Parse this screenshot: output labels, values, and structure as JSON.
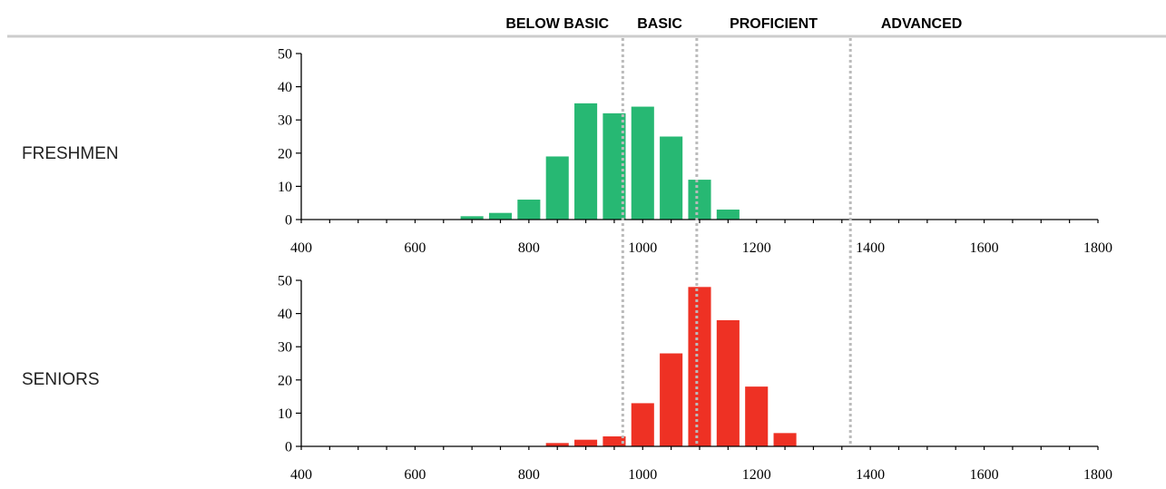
{
  "bands": [
    "BELOW BASIC",
    "BASIC",
    "PROFICIENT",
    "ADVANCED"
  ],
  "band_colors": {
    "header_line": "#cccccc",
    "cutoff_line": "#bbbbbb"
  },
  "chart_data": [
    {
      "type": "bar",
      "row_label": "FRESHMEN",
      "color": "#27b873",
      "x": [
        700,
        750,
        800,
        850,
        900,
        950,
        1000,
        1050,
        1100,
        1150
      ],
      "values": [
        1,
        2,
        6,
        19,
        35,
        32,
        34,
        25,
        12,
        3
      ],
      "xlim": [
        400,
        1800
      ],
      "ylim": [
        0,
        50
      ],
      "xticks": [
        400,
        600,
        800,
        1000,
        1200,
        1400,
        1600,
        1800
      ],
      "yticks": [
        0,
        10,
        20,
        30,
        40,
        50
      ],
      "cutoffs": [
        965,
        1095,
        1365
      ]
    },
    {
      "type": "bar",
      "row_label": "SENIORS",
      "color": "#ee3124",
      "x": [
        850,
        900,
        950,
        1000,
        1050,
        1100,
        1150,
        1200,
        1250
      ],
      "values": [
        1,
        2,
        3,
        13,
        28,
        48,
        38,
        18,
        4
      ],
      "xlim": [
        400,
        1800
      ],
      "ylim": [
        0,
        50
      ],
      "xticks": [
        400,
        600,
        800,
        1000,
        1200,
        1400,
        1600,
        1800
      ],
      "yticks": [
        0,
        10,
        20,
        30,
        40,
        50
      ],
      "cutoffs": [
        965,
        1095,
        1365
      ]
    }
  ]
}
